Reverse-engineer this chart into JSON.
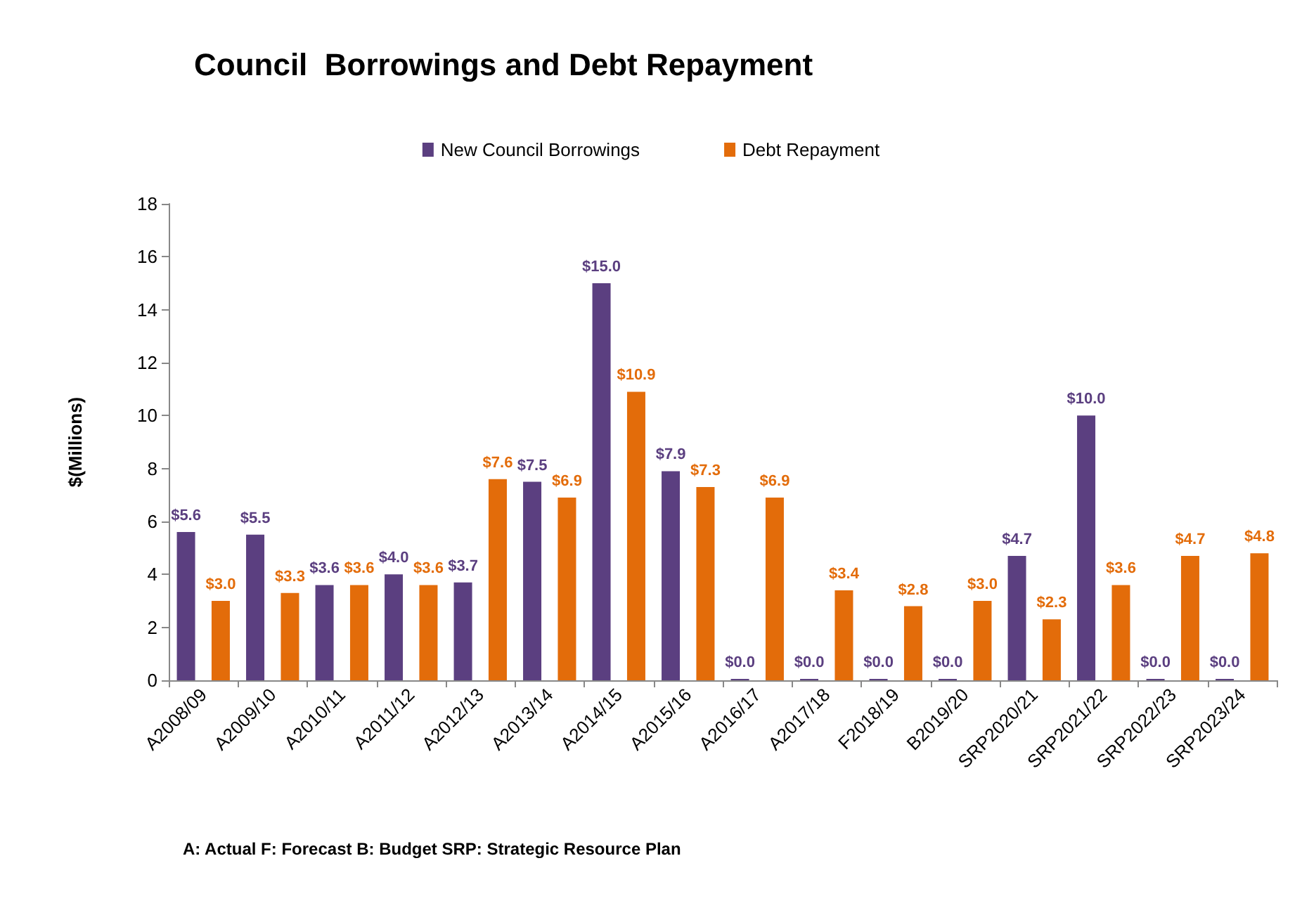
{
  "chart_data": {
    "type": "bar",
    "title": "Council  Borrowings and Debt Repayment",
    "ylabel": "$(Millions)",
    "categories": [
      "A2008/09",
      "A2009/10",
      "A2010/11",
      "A2011/12",
      "A2012/13",
      "A2013/14",
      "A2014/15",
      "A2015/16",
      "A2016/17",
      "A2017/18",
      "F2018/19",
      "B2019/20",
      "SRP2020/21",
      "SRP2021/22",
      "SRP2022/23",
      "SRP2023/24"
    ],
    "series": [
      {
        "name": "New Council Borrowings",
        "color": "#5b3f80",
        "values": [
          5.6,
          5.5,
          3.6,
          4.0,
          3.7,
          7.5,
          15.0,
          7.9,
          0,
          0,
          0,
          0,
          4.7,
          10.0,
          0,
          0
        ],
        "value_labels": [
          "$5.6",
          "$5.5",
          "$3.6",
          "$4.0",
          "$3.7",
          "$7.5",
          "$15.0",
          "$7.9",
          "$0.0",
          "$0.0",
          "$0.0",
          "$0.0",
          "$4.7",
          "$10.0",
          "$0.0",
          "$0.0"
        ]
      },
      {
        "name": "Debt Repayment",
        "color": "#e36c0a",
        "values": [
          3.0,
          3.3,
          3.6,
          3.6,
          7.6,
          6.9,
          10.9,
          7.3,
          6.9,
          3.4,
          2.8,
          3.0,
          2.3,
          3.6,
          4.7,
          4.8
        ],
        "value_labels": [
          "$3.0",
          "$3.3",
          "$3.6",
          "$3.6",
          "$7.6",
          "$6.9",
          "$10.9",
          "$7.3",
          "$6.9",
          "$3.4",
          "$2.8",
          "$3.0",
          "$2.3",
          "$3.6",
          "$4.7",
          "$4.8"
        ]
      }
    ],
    "ylim": [
      0,
      18
    ],
    "yticks": [
      0,
      2,
      4,
      6,
      8,
      10,
      12,
      14,
      16,
      18
    ],
    "grid": false,
    "legend": "top",
    "annotations": [
      "A: Actual F: Forecast B: Budget SRP: Strategic Resource Plan"
    ]
  }
}
